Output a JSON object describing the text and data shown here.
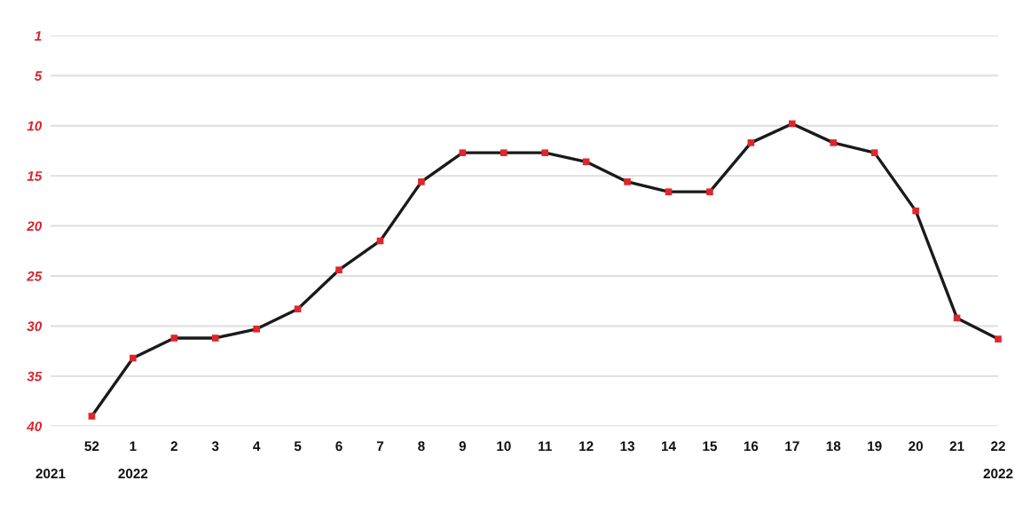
{
  "chart_data": {
    "type": "line",
    "categories": [
      "52",
      "1",
      "2",
      "3",
      "4",
      "5",
      "6",
      "7",
      "8",
      "9",
      "10",
      "11",
      "12",
      "13",
      "14",
      "15",
      "16",
      "17",
      "18",
      "19",
      "20",
      "21",
      "22"
    ],
    "series": [
      {
        "color": "#1a1a1a",
        "colors": [
          "#e0252b",
          "#e0252b",
          "#e0252b",
          "#e0252b",
          "#e0252b",
          "#e0252b",
          "#e0252b",
          "#e0252b",
          "#e0252b",
          "#e0252b",
          "#e0252b",
          "#e0252b",
          "#e0252b",
          "#e0252b",
          "#e0252b",
          "#e0252b",
          "#e0252b",
          "#e0252b",
          "#e0252b",
          "#e0252b",
          "#e0252b",
          "#e0252b",
          "#e0252b"
        ],
        "values": [
          39.0,
          33.2,
          31.2,
          31.2,
          30.3,
          28.3,
          24.4,
          21.5,
          15.6,
          12.7,
          12.7,
          12.7,
          13.6,
          15.6,
          16.6,
          16.6,
          11.7,
          9.8,
          11.7,
          12.7,
          18.5,
          29.2,
          31.3
        ]
      }
    ],
    "annotations": [
      "2021",
      "2022",
      "2022"
    ],
    "ylim": [
      40,
      1
    ],
    "yticks": [
      1,
      5,
      10,
      15,
      20,
      25,
      30,
      35,
      40
    ],
    "grid": "y",
    "marker": "square",
    "line_style": "solid"
  }
}
